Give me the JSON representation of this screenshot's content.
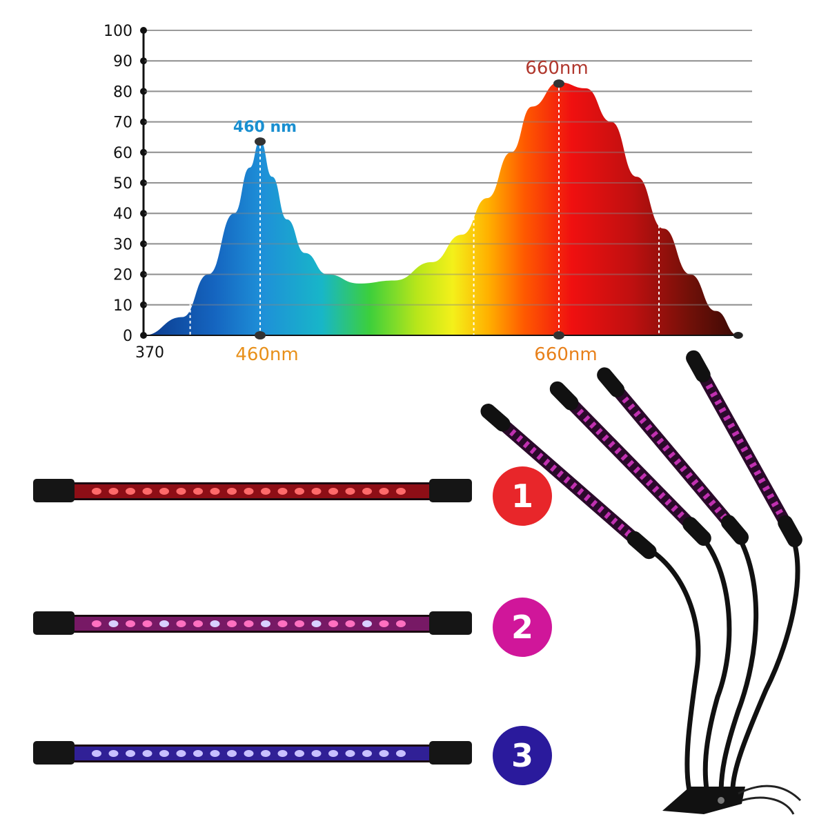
{
  "chart_data": {
    "type": "area",
    "title": "",
    "xlabel": "",
    "ylabel": "",
    "ylim": [
      0,
      100
    ],
    "xlim": [
      370,
      780
    ],
    "yticks": [
      "0",
      "10",
      "20",
      "30",
      "40",
      "50",
      "60",
      "70",
      "80",
      "90",
      "100"
    ],
    "x_tick_start": "370",
    "x_tick_labels": [
      {
        "value": 460,
        "label": "460nm"
      },
      {
        "value": 660,
        "label": "660nm"
      }
    ],
    "grid": true,
    "series": [
      {
        "x": [
          370,
          400,
          420,
          440,
          452,
          460,
          468,
          478,
          490,
          505,
          526,
          550,
          575,
          595,
          612,
          628,
          642,
          660,
          678,
          695,
          712,
          730,
          748,
          765,
          780
        ],
        "y": [
          0,
          6,
          20,
          40,
          55,
          64,
          52,
          38,
          27,
          20,
          17,
          18,
          24,
          33,
          45,
          60,
          75,
          83,
          81,
          70,
          52,
          35,
          20,
          8,
          0
        ]
      }
    ],
    "annotations": [
      {
        "x": 460,
        "y": 64,
        "label": "460 nm",
        "color": "#1a8fd0"
      },
      {
        "x": 660,
        "y": 83,
        "label": "660nm",
        "color": "#b0382e"
      }
    ],
    "dashed_guides_nm": [
      406,
      460,
      603,
      660,
      727
    ]
  },
  "products": {
    "modes": [
      {
        "number": "1",
        "color": "#e8262a",
        "leds": "red"
      },
      {
        "number": "2",
        "color": "#d0169a",
        "leds": "red-blue"
      },
      {
        "number": "3",
        "color": "#2a1a9c",
        "leds": "blue"
      }
    ],
    "lamp_heads": 4
  }
}
